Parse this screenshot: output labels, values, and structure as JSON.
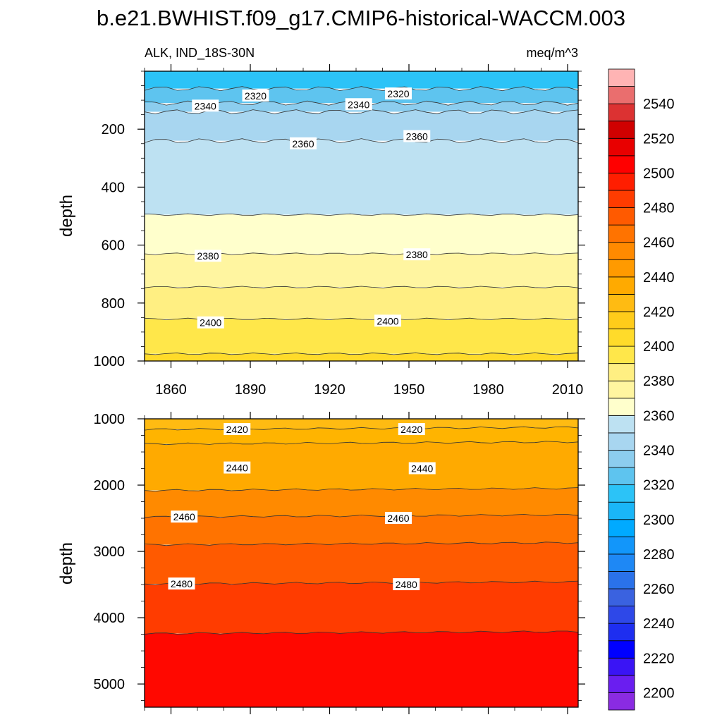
{
  "chart_data": {
    "type": "heatmap",
    "title": "b.e21.BWHIST.f09_g17.CMIP6-historical-WACCM.003",
    "variable": "ALK, IND_18S-30N",
    "units": "meq/m^3",
    "ylabel": "depth",
    "x_ticks": [
      "1860",
      "1890",
      "1920",
      "1950",
      "1980",
      "2010"
    ],
    "x_tick_values": [
      1860,
      1890,
      1920,
      1950,
      1980,
      2010
    ],
    "xlim": [
      1850,
      2014
    ],
    "colorbar": {
      "levels": [
        2200,
        2210,
        2220,
        2230,
        2240,
        2250,
        2260,
        2270,
        2280,
        2290,
        2300,
        2310,
        2320,
        2330,
        2340,
        2350,
        2360,
        2370,
        2380,
        2390,
        2400,
        2410,
        2420,
        2430,
        2440,
        2450,
        2460,
        2470,
        2480,
        2490,
        2500,
        2510,
        2520,
        2530,
        2540,
        2550
      ],
      "labels": [
        "2200",
        "2220",
        "2240",
        "2260",
        "2280",
        "2300",
        "2320",
        "2340",
        "2360",
        "2380",
        "2400",
        "2420",
        "2440",
        "2460",
        "2480",
        "2500",
        "2520",
        "2540"
      ],
      "label_values": [
        2200,
        2220,
        2240,
        2260,
        2280,
        2300,
        2320,
        2340,
        2360,
        2380,
        2400,
        2420,
        2440,
        2460,
        2480,
        2500,
        2520,
        2540
      ],
      "colors": [
        "#8a2be2",
        "#6a1ef0",
        "#3a14f5",
        "#0000ff",
        "#1e2ef0",
        "#2e48e8",
        "#3a62e0",
        "#2a72ea",
        "#1e88f5",
        "#1296fa",
        "#00aaff",
        "#1ab6f8",
        "#2cc3f7",
        "#5ec4ef",
        "#8ccdee",
        "#a8d6f0",
        "#bde1f2",
        "#ffffcc",
        "#fff5a0",
        "#ffef82",
        "#ffe74a",
        "#ffdb2a",
        "#ffcc1a",
        "#ffbb12",
        "#ffaa00",
        "#ff9a00",
        "#ff8a00",
        "#ff7300",
        "#ff5a00",
        "#ff3c00",
        "#ff1e00",
        "#ff0000",
        "#e80000",
        "#d00000",
        "#dc3232",
        "#ea6e6e",
        "#ffb4b4"
      ]
    },
    "panels": [
      {
        "name": "upper",
        "ylim": [
          1000,
          0
        ],
        "y_ticks": [
          "200",
          "400",
          "600",
          "800",
          "1000"
        ],
        "y_tick_values": [
          200,
          400,
          600,
          800,
          1000
        ],
        "bands": [
          {
            "value": 2310,
            "color": "#2cc3f7",
            "from": 0,
            "to": 60
          },
          {
            "value": 2330,
            "color": "#5ec4ef",
            "from": 60,
            "to": 110
          },
          {
            "value": 2340,
            "color": "#8ccdee",
            "from": 110,
            "to": 140
          },
          {
            "value": 2350,
            "color": "#a8d6f0",
            "from": 140,
            "to": 240
          },
          {
            "value": 2360,
            "color": "#bde1f2",
            "from": 240,
            "to": 495
          },
          {
            "value": 2370,
            "color": "#ffffcc",
            "from": 495,
            "to": 630
          },
          {
            "value": 2385,
            "color": "#fff5a0",
            "from": 630,
            "to": 745
          },
          {
            "value": 2395,
            "color": "#ffef82",
            "from": 745,
            "to": 855
          },
          {
            "value": 2405,
            "color": "#ffe74a",
            "from": 855,
            "to": 975
          },
          {
            "value": 2410,
            "color": "#ffdb2a",
            "from": 975,
            "to": 1000
          }
        ],
        "contour_labels": [
          {
            "text": "2320",
            "year": 1892,
            "depth": 85
          },
          {
            "text": "2320",
            "year": 1946,
            "depth": 78
          },
          {
            "text": "2340",
            "year": 1873,
            "depth": 120
          },
          {
            "text": "2340",
            "year": 1931,
            "depth": 115
          },
          {
            "text": "2360",
            "year": 1910,
            "depth": 250
          },
          {
            "text": "2360",
            "year": 1953,
            "depth": 225
          },
          {
            "text": "2380",
            "year": 1874,
            "depth": 638
          },
          {
            "text": "2380",
            "year": 1953,
            "depth": 633
          },
          {
            "text": "2400",
            "year": 1875,
            "depth": 868
          },
          {
            "text": "2400",
            "year": 1942,
            "depth": 862
          }
        ]
      },
      {
        "name": "lower",
        "ylim": [
          5350,
          1000
        ],
        "y_ticks": [
          "1000",
          "2000",
          "3000",
          "4000",
          "5000"
        ],
        "y_tick_values": [
          1000,
          2000,
          3000,
          4000,
          5000
        ],
        "bands": [
          {
            "value": 2415,
            "color": "#ffbb12",
            "from": 1000,
            "to": 1160
          },
          {
            "value": 2425,
            "color": "#ffb400",
            "from": 1160,
            "to": 1380
          },
          {
            "value": 2435,
            "color": "#ffaa00",
            "from": 1380,
            "to": 2080
          },
          {
            "value": 2450,
            "color": "#ff8a00",
            "from": 2080,
            "to": 2480
          },
          {
            "value": 2460,
            "color": "#ff7300",
            "from": 2480,
            "to": 2900
          },
          {
            "value": 2470,
            "color": "#ff5a00",
            "from": 2900,
            "to": 3490
          },
          {
            "value": 2480,
            "color": "#ff3c00",
            "from": 3490,
            "to": 4240
          },
          {
            "value": 2500,
            "color": "#ff0800",
            "from": 4240,
            "to": 5350
          }
        ],
        "contour_labels": [
          {
            "text": "2420",
            "year": 1885,
            "depth": 1160
          },
          {
            "text": "2420",
            "year": 1951,
            "depth": 1160
          },
          {
            "text": "2440",
            "year": 1885,
            "depth": 1740
          },
          {
            "text": "2440",
            "year": 1955,
            "depth": 1750
          },
          {
            "text": "2460",
            "year": 1865,
            "depth": 2480
          },
          {
            "text": "2460",
            "year": 1946,
            "depth": 2500
          },
          {
            "text": "2480",
            "year": 1864,
            "depth": 3490
          },
          {
            "text": "2480",
            "year": 1949,
            "depth": 3500
          }
        ]
      }
    ]
  }
}
